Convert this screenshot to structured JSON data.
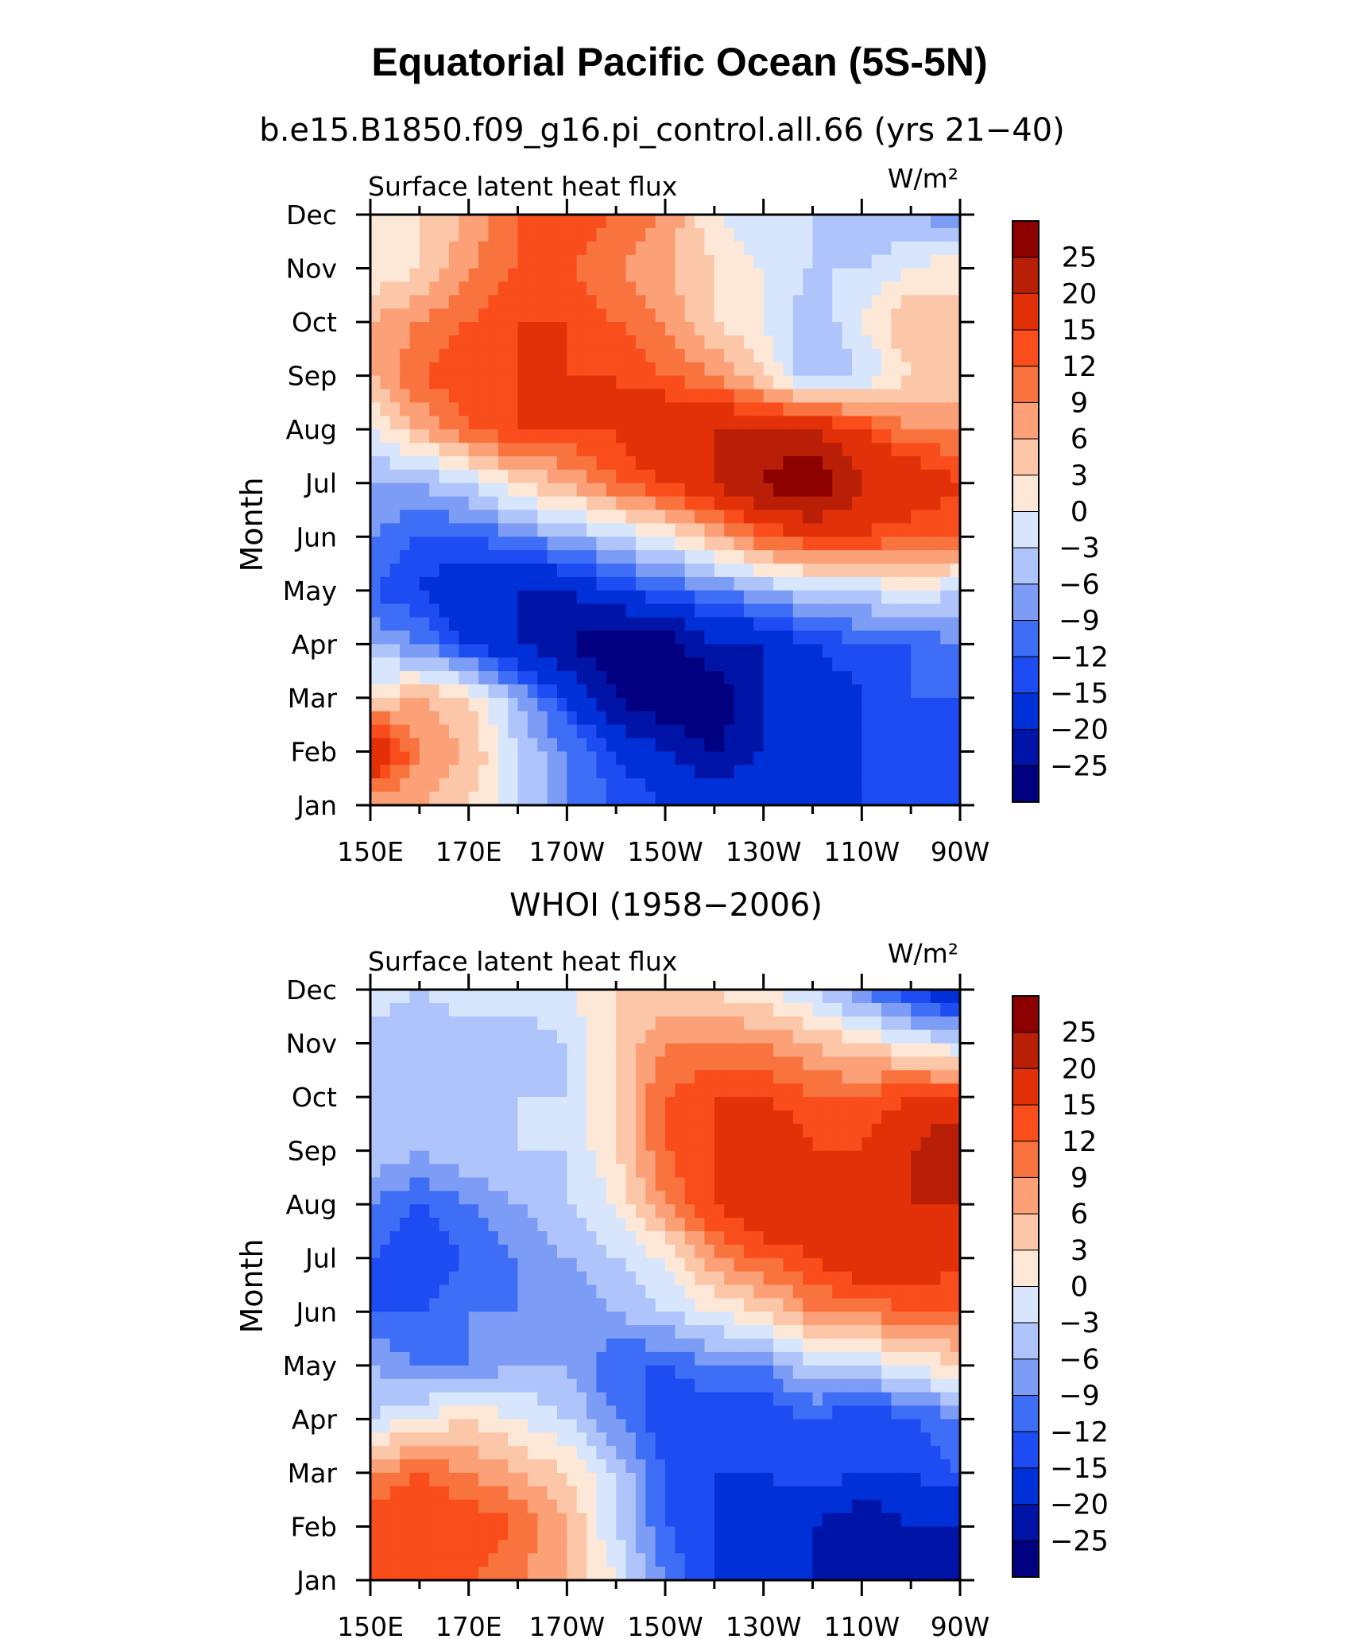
{
  "figure": {
    "title": "Equatorial Pacific Ocean (5S-5N)"
  },
  "chart_data": [
    {
      "type": "heatmap",
      "title": "b.e15.B1850.f09_g16.pi_control.all.66 (yrs 21−40)",
      "variable": "Surface latent heat flux",
      "units": "W/m²",
      "xlabel": "",
      "ylabel": "Month",
      "x": [
        150,
        160,
        170,
        180,
        190,
        200,
        210,
        220,
        230,
        240,
        250,
        260,
        270
      ],
      "x_tick_values": [
        150,
        170,
        190,
        210,
        230,
        250,
        270
      ],
      "x_tick_labels": [
        "150E",
        "170E",
        "170W",
        "150W",
        "130W",
        "110W",
        "90W"
      ],
      "xlim": [
        150,
        270
      ],
      "months": [
        "Jan",
        "Feb",
        "Mar",
        "Apr",
        "May",
        "Jun",
        "Jul",
        "Aug",
        "Sep",
        "Oct",
        "Nov",
        "Dec"
      ],
      "z": [
        [
          6,
          6,
          3,
          -3,
          -9,
          -12,
          -15,
          -15,
          -15,
          -15,
          -15,
          -15,
          -15
        ],
        [
          22,
          9,
          6,
          -3,
          -9,
          -15,
          -20,
          -25,
          -20,
          -20,
          -15,
          -15,
          -15
        ],
        [
          3,
          6,
          3,
          -6,
          -15,
          -25,
          -30,
          -30,
          -20,
          -20,
          -15,
          -12,
          -12
        ],
        [
          -6,
          -9,
          -15,
          -20,
          -25,
          -30,
          -28,
          -20,
          -20,
          -15,
          -12,
          -12,
          -9
        ],
        [
          -12,
          -15,
          -20,
          -20,
          -20,
          -15,
          -12,
          -9,
          -6,
          -3,
          -3,
          0,
          -3
        ],
        [
          -9,
          -12,
          -12,
          -9,
          -6,
          -3,
          0,
          6,
          12,
          15,
          15,
          12,
          12
        ],
        [
          -6,
          -6,
          -3,
          3,
          6,
          12,
          15,
          20,
          26,
          30,
          20,
          20,
          15
        ],
        [
          0,
          6,
          12,
          15,
          15,
          15,
          20,
          20,
          20,
          20,
          15,
          9,
          9
        ],
        [
          6,
          12,
          15,
          15,
          15,
          15,
          12,
          9,
          3,
          -6,
          -3,
          3,
          3
        ],
        [
          6,
          9,
          12,
          15,
          15,
          12,
          9,
          3,
          0,
          -6,
          0,
          6,
          3
        ],
        [
          0,
          3,
          9,
          12,
          12,
          9,
          6,
          3,
          0,
          -3,
          -3,
          0,
          3
        ],
        [
          0,
          3,
          6,
          12,
          15,
          12,
          9,
          0,
          -3,
          -3,
          -6,
          -6,
          -9
        ]
      ]
    },
    {
      "type": "heatmap",
      "title": "WHOI (1958−2006)",
      "variable": "Surface latent heat flux",
      "units": "W/m²",
      "xlabel": "",
      "ylabel": "Month",
      "x": [
        150,
        160,
        170,
        180,
        190,
        200,
        210,
        220,
        230,
        240,
        250,
        260,
        270
      ],
      "x_tick_values": [
        150,
        170,
        190,
        210,
        230,
        250,
        270
      ],
      "x_tick_labels": [
        "150E",
        "170E",
        "170W",
        "150W",
        "130W",
        "110W",
        "90W"
      ],
      "xlim": [
        150,
        270
      ],
      "months": [
        "Jan",
        "Feb",
        "Mar",
        "Apr",
        "May",
        "Jun",
        "Jul",
        "Aug",
        "Sep",
        "Oct",
        "Nov",
        "Dec"
      ],
      "z": [
        [
          12,
          15,
          12,
          9,
          6,
          0,
          -9,
          -15,
          -15,
          -20,
          -20,
          -25,
          -25
        ],
        [
          15,
          15,
          15,
          12,
          6,
          -3,
          -12,
          -15,
          -20,
          -20,
          -25,
          -20,
          -20
        ],
        [
          9,
          12,
          9,
          6,
          3,
          -3,
          -12,
          -15,
          -15,
          -12,
          -15,
          -15,
          -12
        ],
        [
          -3,
          0,
          3,
          0,
          -3,
          -9,
          -15,
          -15,
          -15,
          -12,
          -15,
          -12,
          -9
        ],
        [
          -6,
          -9,
          -9,
          -6,
          -6,
          -12,
          -12,
          -9,
          -9,
          -3,
          -3,
          0,
          3
        ],
        [
          -12,
          -12,
          -9,
          -9,
          -9,
          -6,
          -3,
          0,
          3,
          9,
          9,
          12,
          12
        ],
        [
          -12,
          -15,
          -12,
          -9,
          -6,
          -3,
          0,
          9,
          12,
          15,
          20,
          20,
          15
        ],
        [
          -9,
          -12,
          -9,
          -6,
          -3,
          0,
          9,
          15,
          20,
          20,
          15,
          20,
          20
        ],
        [
          -3,
          -6,
          -3,
          -3,
          -3,
          3,
          12,
          15,
          20,
          15,
          15,
          20,
          26
        ],
        [
          -3,
          -3,
          -6,
          -3,
          -3,
          3,
          12,
          15,
          15,
          12,
          12,
          15,
          15
        ],
        [
          -6,
          -6,
          -6,
          -6,
          -3,
          3,
          9,
          9,
          9,
          6,
          3,
          0,
          -3
        ],
        [
          0,
          -3,
          0,
          0,
          0,
          3,
          3,
          3,
          0,
          -3,
          -9,
          -15,
          -20
        ]
      ]
    }
  ],
  "colorbar": {
    "levels": [
      -25,
      -20,
      -15,
      -12,
      -9,
      -6,
      -3,
      0,
      3,
      6,
      9,
      12,
      15,
      20,
      25
    ],
    "labels": [
      "25",
      "20",
      "15",
      "12",
      "9",
      "6",
      "3",
      "0",
      "−3",
      "−6",
      "−9",
      "−12",
      "−15",
      "−20",
      "−25"
    ],
    "colors": [
      "#000080",
      "#0015a8",
      "#0030d8",
      "#1c4cf2",
      "#3e6ef5",
      "#7c9cf5",
      "#aec4fa",
      "#d7e6fc",
      "#fde8d8",
      "#fcc6a8",
      "#fba077",
      "#f9733f",
      "#f94d1c",
      "#e23008",
      "#b81f06",
      "#8c0000"
    ]
  }
}
